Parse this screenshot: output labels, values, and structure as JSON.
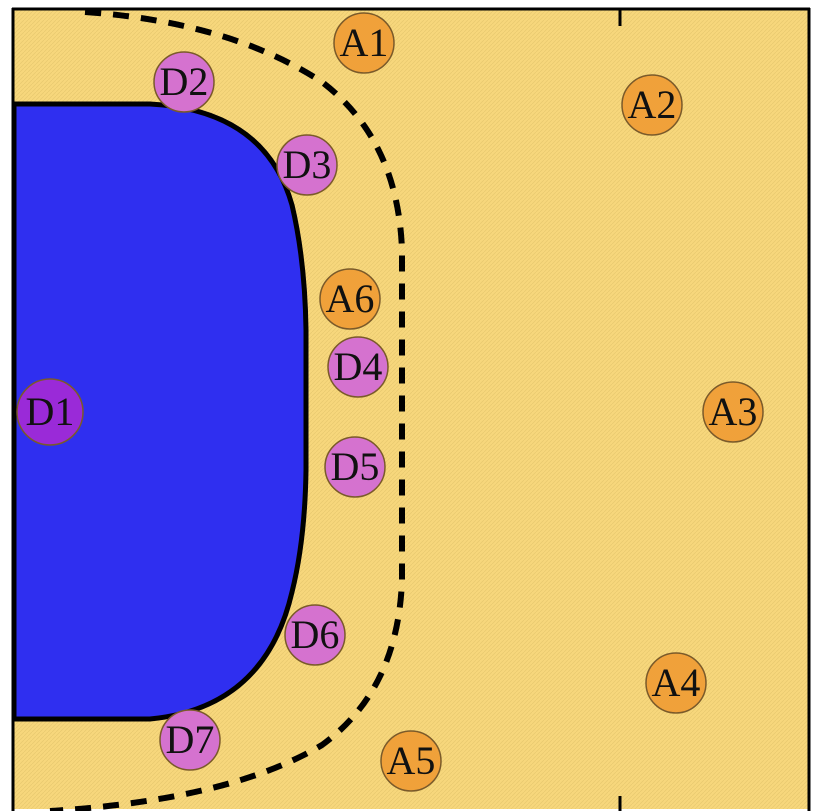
{
  "colors": {
    "court": "#f7d77c",
    "court_texture": "#ead07a",
    "inner_zone": "#2f2ff0",
    "line": "#000000",
    "attacker": "#f0a13a",
    "defender": "#d572cf",
    "defender_primary": "#9a2ad8"
  },
  "players": [
    {
      "label": "A1",
      "role": "attacker",
      "color": "#f0a13a"
    },
    {
      "label": "A2",
      "role": "attacker",
      "color": "#f0a13a"
    },
    {
      "label": "A3",
      "role": "attacker",
      "color": "#f0a13a"
    },
    {
      "label": "A4",
      "role": "attacker",
      "color": "#f0a13a"
    },
    {
      "label": "A5",
      "role": "attacker",
      "color": "#f0a13a"
    },
    {
      "label": "A6",
      "role": "attacker",
      "color": "#f0a13a"
    },
    {
      "label": "D1",
      "role": "defender",
      "color": "#9a2ad8"
    },
    {
      "label": "D2",
      "role": "defender",
      "color": "#d572cf"
    },
    {
      "label": "D3",
      "role": "defender",
      "color": "#d572cf"
    },
    {
      "label": "D4",
      "role": "defender",
      "color": "#d572cf"
    },
    {
      "label": "D5",
      "role": "defender",
      "color": "#d572cf"
    },
    {
      "label": "D6",
      "role": "defender",
      "color": "#d572cf"
    },
    {
      "label": "D7",
      "role": "defender",
      "color": "#d572cf"
    }
  ]
}
